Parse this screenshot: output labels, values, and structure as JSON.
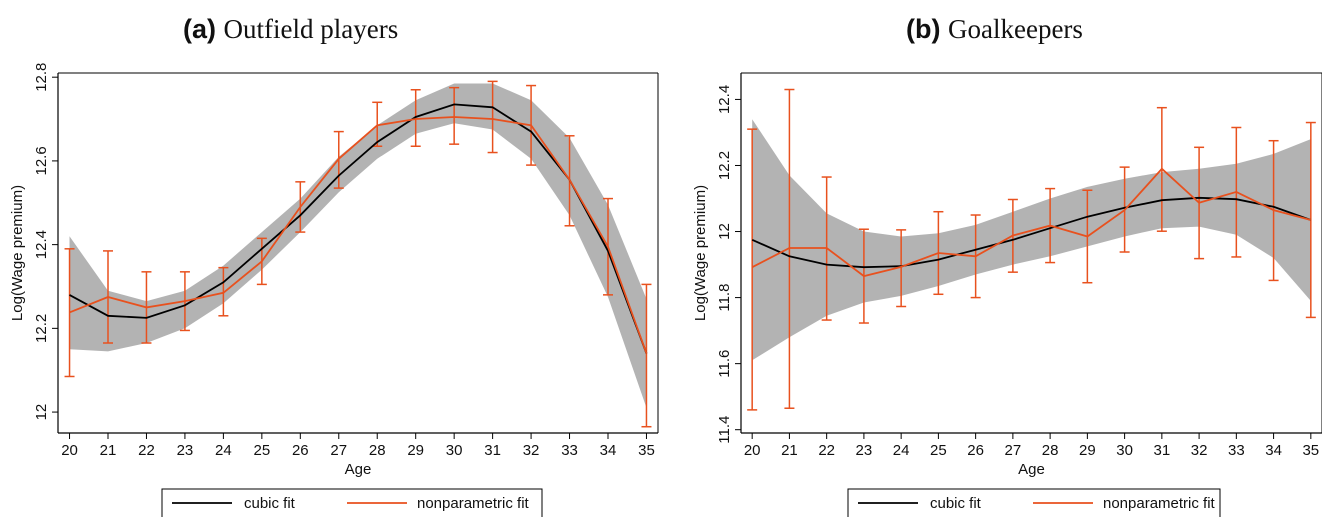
{
  "panels": {
    "a": {
      "tag": "(a)",
      "text": "Outfield players"
    },
    "b": {
      "tag": "(b)",
      "text": "Goalkeepers"
    }
  },
  "colors": {
    "cubic": "#000000",
    "nonparametric": "#e8511e",
    "ci_band": "#b3b3b3"
  },
  "chart_data": [
    {
      "type": "line",
      "title": "(a) Outfield players",
      "xlabel": "Age",
      "ylabel": "Log(Wage premium)",
      "x": [
        20,
        21,
        22,
        23,
        24,
        25,
        26,
        27,
        28,
        29,
        30,
        31,
        32,
        33,
        34,
        35
      ],
      "xlim": [
        19.7,
        35.3
      ],
      "ylim": [
        11.95,
        12.81
      ],
      "yticks": [
        12,
        12.2,
        12.4,
        12.6,
        12.8
      ],
      "xtick_labels": [
        "20",
        "21",
        "22",
        "23",
        "24",
        "25",
        "26",
        "27",
        "28",
        "29",
        "30",
        "31",
        "32",
        "33",
        "34",
        "35"
      ],
      "ytick_labels": [
        "12",
        "12.2",
        "12.4",
        "12.6",
        "12.8"
      ],
      "grid": false,
      "legend": "bottom",
      "series": [
        {
          "name": "cubic fit",
          "kind": "cubic",
          "values": [
            12.28,
            12.23,
            12.225,
            12.255,
            12.31,
            12.39,
            12.47,
            12.565,
            12.645,
            12.705,
            12.735,
            12.728,
            12.67,
            12.555,
            12.385,
            12.14
          ],
          "band_upper": [
            12.42,
            12.29,
            12.265,
            12.29,
            12.35,
            12.43,
            12.51,
            12.61,
            12.685,
            12.745,
            12.785,
            12.785,
            12.745,
            12.655,
            12.495,
            12.27
          ],
          "band_lower": [
            12.15,
            12.145,
            12.165,
            12.2,
            12.26,
            12.34,
            12.43,
            12.525,
            12.605,
            12.665,
            12.69,
            12.675,
            12.605,
            12.47,
            12.275,
            12.01
          ]
        },
        {
          "name": "nonparametric fit",
          "kind": "nonparametric",
          "values": [
            12.238,
            12.275,
            12.25,
            12.265,
            12.285,
            12.36,
            12.49,
            12.605,
            12.685,
            12.7,
            12.705,
            12.7,
            12.685,
            12.555,
            12.395,
            12.14
          ],
          "ci_upper": [
            12.39,
            12.385,
            12.335,
            12.335,
            12.345,
            12.415,
            12.55,
            12.67,
            12.74,
            12.77,
            12.775,
            12.79,
            12.78,
            12.66,
            12.51,
            12.305
          ],
          "ci_lower": [
            12.085,
            12.165,
            12.165,
            12.195,
            12.23,
            12.305,
            12.43,
            12.535,
            12.635,
            12.635,
            12.64,
            12.62,
            12.59,
            12.445,
            12.28,
            11.965
          ]
        }
      ]
    },
    {
      "type": "line",
      "title": "(b) Goalkeepers",
      "xlabel": "Age",
      "ylabel": "Log(Wage premium)",
      "x": [
        20,
        21,
        22,
        23,
        24,
        25,
        26,
        27,
        28,
        29,
        30,
        31,
        32,
        33,
        34,
        35
      ],
      "xlim": [
        19.7,
        35.3
      ],
      "ylim": [
        11.39,
        12.48
      ],
      "yticks": [
        11.4,
        11.6,
        11.8,
        12,
        12.2,
        12.4
      ],
      "xtick_labels": [
        "20",
        "21",
        "22",
        "23",
        "24",
        "25",
        "26",
        "27",
        "28",
        "29",
        "30",
        "31",
        "32",
        "33",
        "34",
        "35"
      ],
      "ytick_labels": [
        "11.4",
        "11.6",
        "11.8",
        "12",
        "12.2",
        "12.4"
      ],
      "grid": false,
      "legend": "bottom",
      "series": [
        {
          "name": "cubic fit",
          "kind": "cubic",
          "values": [
            11.975,
            11.925,
            11.9,
            11.892,
            11.895,
            11.915,
            11.945,
            11.975,
            12.01,
            12.045,
            12.072,
            12.095,
            12.102,
            12.098,
            12.075,
            12.035
          ],
          "band_upper": [
            12.34,
            12.17,
            12.055,
            12,
            11.985,
            11.995,
            12.02,
            12.06,
            12.1,
            12.135,
            12.16,
            12.18,
            12.19,
            12.205,
            12.235,
            12.28
          ],
          "band_lower": [
            11.61,
            11.68,
            11.745,
            11.785,
            11.805,
            11.835,
            11.87,
            11.9,
            11.925,
            11.955,
            11.985,
            12.01,
            12.015,
            11.99,
            11.92,
            11.79
          ]
        },
        {
          "name": "nonparametric fit",
          "kind": "nonparametric",
          "values": [
            11.892,
            11.95,
            11.95,
            11.865,
            11.893,
            11.935,
            11.925,
            11.988,
            12.018,
            11.985,
            12.065,
            12.19,
            12.087,
            12.12,
            12.065,
            12.035
          ],
          "ci_upper": [
            12.31,
            12.43,
            12.165,
            12.007,
            12.005,
            12.06,
            12.05,
            12.097,
            12.13,
            12.125,
            12.195,
            12.375,
            12.255,
            12.315,
            12.275,
            12.33
          ],
          "ci_lower": [
            11.46,
            11.465,
            11.732,
            11.723,
            11.773,
            11.81,
            11.8,
            11.877,
            11.906,
            11.845,
            11.938,
            12.001,
            11.918,
            11.923,
            11.852,
            11.74
          ]
        }
      ]
    }
  ]
}
